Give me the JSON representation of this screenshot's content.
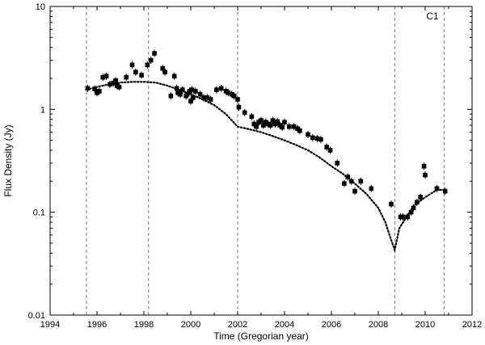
{
  "chart_data": {
    "type": "scatter",
    "xlabel": "Time (Gregorian year)",
    "ylabel": "Flux Density (Jy)",
    "xlim": [
      1994,
      2012
    ],
    "ylim": [
      0.01,
      10
    ],
    "yscale": "log",
    "grid": false,
    "legend": "none",
    "x_ticks": [
      1994,
      1996,
      1998,
      2000,
      2002,
      2004,
      2006,
      2008,
      2010,
      2012
    ],
    "x_tick_labels": [
      "1994",
      "1996",
      "1998",
      "2000",
      "2002",
      "2004",
      "2006",
      "2008",
      "2010",
      "2012"
    ],
    "y_ticks": [
      0.01,
      0.1,
      1,
      10
    ],
    "y_tick_labels": [
      "0.01",
      "0.1",
      "1",
      "10"
    ],
    "annotation": "C1",
    "vertical_lines": [
      1995.55,
      1998.2,
      2002.0,
      2008.7,
      2010.8
    ],
    "colors": {
      "points": "#000000",
      "model": "#000000",
      "vlines": "#555555",
      "axes": "#000000"
    },
    "series": [
      {
        "kind": "points",
        "x": [
          1995.6,
          1995.9,
          1996.0,
          1996.1,
          1996.25,
          1996.4,
          1996.55,
          1996.7,
          1996.8,
          1996.85,
          1996.95,
          1997.25,
          1997.5,
          1997.65,
          1997.9,
          1998.15,
          1998.3,
          1998.45,
          1998.8,
          1998.9,
          1999.15,
          1999.3,
          1999.4,
          1999.45,
          1999.55,
          1999.65,
          1999.8,
          1999.85,
          1999.95,
          2000.0,
          2000.05,
          2000.1,
          2000.2,
          2000.4,
          2000.55,
          2000.7,
          2000.85,
          2001.1,
          2001.3,
          2001.5,
          2001.6,
          2001.75,
          2001.85,
          2002.0,
          2002.05,
          2002.3,
          2002.6,
          2002.7,
          2002.8,
          2002.9,
          2003.0,
          2003.1,
          2003.2,
          2003.3,
          2003.4,
          2003.5,
          2003.6,
          2003.7,
          2003.8,
          2003.9,
          2004.0,
          2004.2,
          2004.4,
          2004.55,
          2004.65,
          2005.0,
          2005.2,
          2005.4,
          2005.55,
          2005.8,
          2005.95,
          2006.25,
          2006.55,
          2006.7,
          2006.85,
          2007.0,
          2007.25,
          2007.7,
          2008.55,
          2008.95,
          2009.05,
          2009.25,
          2009.4,
          2009.5,
          2009.65,
          2009.8,
          2009.95,
          2010.0,
          2010.5,
          2010.85
        ],
        "y": [
          1.6,
          1.58,
          1.45,
          1.5,
          2.05,
          2.1,
          1.75,
          1.8,
          1.9,
          1.7,
          1.65,
          2.05,
          2.7,
          2.3,
          2.15,
          2.7,
          3.0,
          3.5,
          2.5,
          2.3,
          1.35,
          2.1,
          1.6,
          1.45,
          1.4,
          1.55,
          1.35,
          1.4,
          1.5,
          1.2,
          1.55,
          1.3,
          1.5,
          1.4,
          1.3,
          1.3,
          1.25,
          1.55,
          1.6,
          1.5,
          1.45,
          1.4,
          1.35,
          1.25,
          1.05,
          0.93,
          0.85,
          0.72,
          0.68,
          0.75,
          0.78,
          0.7,
          0.75,
          0.72,
          0.7,
          0.78,
          0.72,
          0.76,
          0.7,
          0.67,
          0.75,
          0.68,
          0.68,
          0.65,
          0.62,
          0.57,
          0.53,
          0.52,
          0.51,
          0.43,
          0.4,
          0.3,
          0.19,
          0.22,
          0.2,
          0.16,
          0.2,
          0.17,
          0.12,
          0.09,
          0.09,
          0.09,
          0.1,
          0.11,
          0.125,
          0.14,
          0.28,
          0.23,
          0.17,
          0.16
        ]
      },
      {
        "kind": "model-dotted",
        "x": [
          1995.55,
          1996.0,
          1996.5,
          1997.0,
          1997.5,
          1998.0,
          1998.5,
          1999.0,
          1999.5,
          2000.0,
          2000.5,
          2001.0,
          2001.5,
          2002.0,
          2002.5,
          2003.0,
          2003.5,
          2004.0,
          2004.5,
          2005.0,
          2005.5,
          2006.0,
          2006.5,
          2007.0,
          2007.5,
          2008.0,
          2008.3,
          2008.5,
          2008.7,
          2008.9,
          2009.2,
          2009.5,
          2010.0,
          2010.5,
          2010.8
        ],
        "y": [
          1.55,
          1.65,
          1.75,
          1.82,
          1.85,
          1.85,
          1.82,
          1.7,
          1.55,
          1.4,
          1.25,
          1.1,
          0.9,
          0.68,
          0.64,
          0.6,
          0.55,
          0.5,
          0.45,
          0.4,
          0.34,
          0.28,
          0.235,
          0.19,
          0.15,
          0.11,
          0.08,
          0.058,
          0.043,
          0.07,
          0.09,
          0.115,
          0.14,
          0.165,
          0.165
        ]
      }
    ]
  }
}
